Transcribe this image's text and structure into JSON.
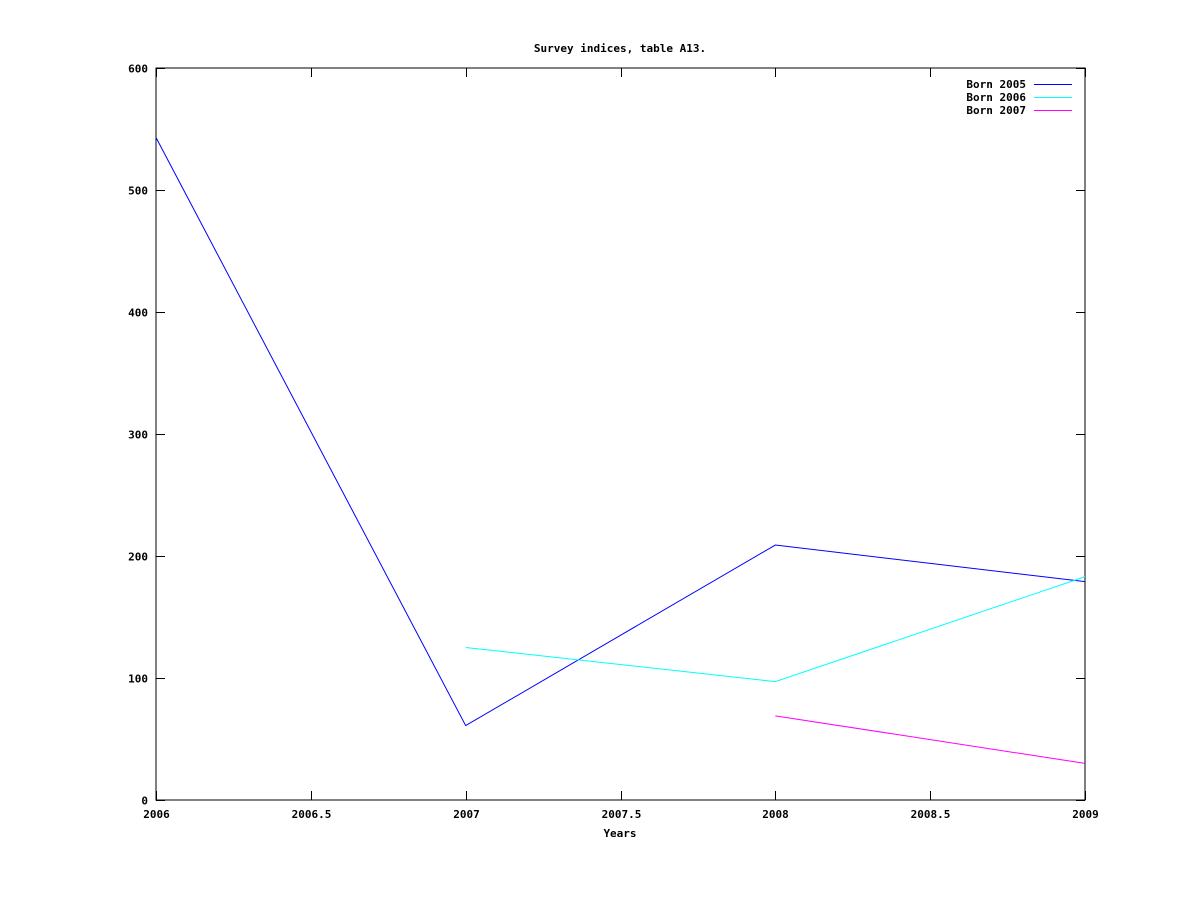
{
  "chart_data": {
    "type": "line",
    "title": "Survey indices, table A13.",
    "xlabel": "Years",
    "ylabel": "",
    "xlim": [
      2006,
      2009
    ],
    "ylim": [
      0,
      600
    ],
    "xticks": [
      2006,
      2006.5,
      2007,
      2007.5,
      2008,
      2008.5,
      2009
    ],
    "xtick_labels": [
      "2006",
      "2006.5",
      "2007",
      "2007.5",
      "2008",
      "2008.5",
      "2009"
    ],
    "yticks": [
      0,
      100,
      200,
      300,
      400,
      500,
      600
    ],
    "ytick_labels": [
      "0",
      "100",
      "200",
      "300",
      "400",
      "500",
      "600"
    ],
    "grid": false,
    "legend_position": "top-right",
    "series": [
      {
        "name": "Born 2005",
        "color": "#0000ff",
        "x": [
          2006,
          2007,
          2008,
          2009
        ],
        "y": [
          543,
          61,
          209,
          179
        ]
      },
      {
        "name": "Born 2006",
        "color": "#00ffff",
        "x": [
          2007,
          2008,
          2009
        ],
        "y": [
          125,
          97,
          183
        ]
      },
      {
        "name": "Born 2007",
        "color": "#ff00ff",
        "x": [
          2008,
          2009
        ],
        "y": [
          69,
          30
        ]
      }
    ]
  }
}
